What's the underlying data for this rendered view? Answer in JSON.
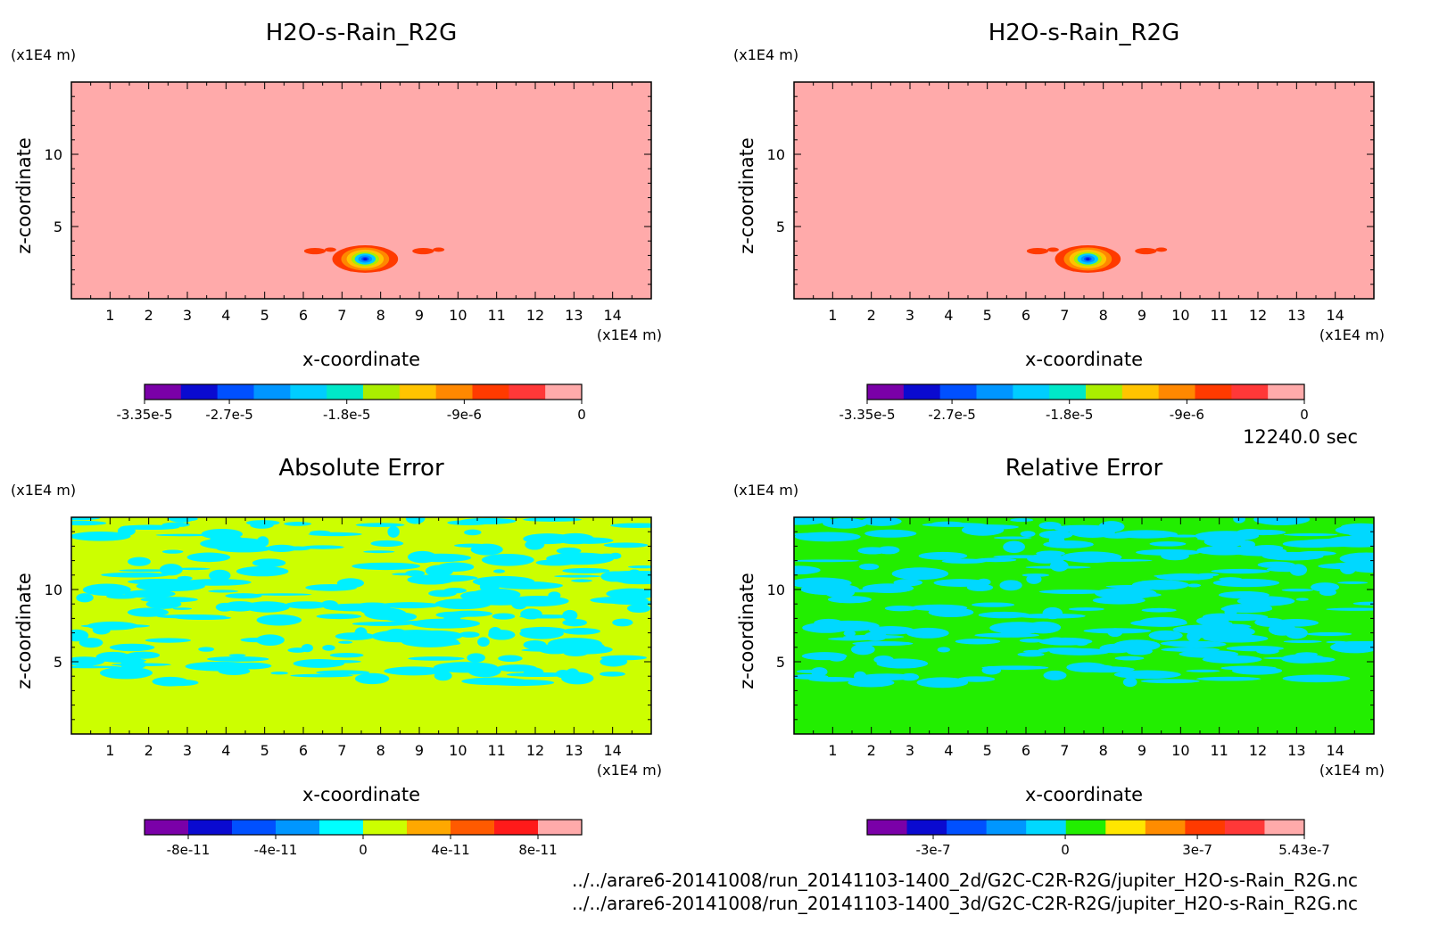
{
  "time_label": "12240.0 sec",
  "files": [
    "../../arare6-20141008/run_20141103-1400_2d/G2C-C2R-R2G/jupiter_H2O-s-Rain_R2G.nc",
    "../../arare6-20141008/run_20141103-1400_3d/G2C-C2R-R2G/jupiter_H2O-s-Rain_R2G.nc"
  ],
  "chart_data": [
    {
      "type": "heatmap",
      "title": "H2O-s-Rain_R2G",
      "xlabel": "x-coordinate",
      "ylabel": "z-coordinate",
      "x_unit": "(x1E4 m)",
      "y_unit": "(x1E4 m)",
      "xlim": [
        0,
        15
      ],
      "ylim": [
        0,
        15
      ],
      "x_ticks": [
        "1",
        "2",
        "3",
        "4",
        "5",
        "6",
        "7",
        "8",
        "9",
        "10",
        "11",
        "12",
        "13",
        "14"
      ],
      "y_ticks": [
        "5",
        "10"
      ],
      "field": "plume",
      "background_color": "#ffaaaa",
      "colorbar": {
        "colors": [
          "#7a00a8",
          "#0a0ad0",
          "#0050ff",
          "#0096ff",
          "#00cdff",
          "#00e8c8",
          "#aaee00",
          "#ffc400",
          "#ff8800",
          "#ff3a00",
          "#ff3838",
          "#ffaaaa"
        ],
        "tick_labels": [
          "-3.35e-5",
          "-2.7e-5",
          "-1.8e-5",
          "-9e-6",
          "0"
        ],
        "min": -3.35e-05,
        "max": 0
      }
    },
    {
      "type": "heatmap",
      "title": "H2O-s-Rain_R2G",
      "xlabel": "x-coordinate",
      "ylabel": "z-coordinate",
      "x_unit": "(x1E4 m)",
      "y_unit": "(x1E4 m)",
      "xlim": [
        0,
        15
      ],
      "ylim": [
        0,
        15
      ],
      "x_ticks": [
        "1",
        "2",
        "3",
        "4",
        "5",
        "6",
        "7",
        "8",
        "9",
        "10",
        "11",
        "12",
        "13",
        "14"
      ],
      "y_ticks": [
        "5",
        "10"
      ],
      "field": "plume",
      "background_color": "#ffaaaa",
      "colorbar": {
        "colors": [
          "#7a00a8",
          "#0a0ad0",
          "#0050ff",
          "#0096ff",
          "#00cdff",
          "#00e8c8",
          "#aaee00",
          "#ffc400",
          "#ff8800",
          "#ff3a00",
          "#ff3838",
          "#ffaaaa"
        ],
        "tick_labels": [
          "-3.35e-5",
          "-2.7e-5",
          "-1.8e-5",
          "-9e-6",
          "0"
        ],
        "min": -3.35e-05,
        "max": 0
      }
    },
    {
      "type": "heatmap",
      "title": "Absolute Error",
      "xlabel": "x-coordinate",
      "ylabel": "z-coordinate",
      "x_unit": "(x1E4 m)",
      "y_unit": "(x1E4 m)",
      "xlim": [
        0,
        15
      ],
      "ylim": [
        0,
        15
      ],
      "x_ticks": [
        "1",
        "2",
        "3",
        "4",
        "5",
        "6",
        "7",
        "8",
        "9",
        "10",
        "11",
        "12",
        "13",
        "14"
      ],
      "y_ticks": [
        "5",
        "10"
      ],
      "field": "noise",
      "background_color": "#ccff00",
      "noise_color": "#00f0ff",
      "noise_zmin": 3.5,
      "colorbar": {
        "colors": [
          "#7a00a8",
          "#0a0ad0",
          "#0050ff",
          "#0096ff",
          "#00ffff",
          "#ccff00",
          "#ffa800",
          "#ff5a00",
          "#ff1a1a",
          "#ffaaaa"
        ],
        "tick_labels": [
          "-8e-11",
          "-4e-11",
          "0",
          "4e-11",
          "8e-11"
        ],
        "min": -1e-10,
        "max": 1e-10
      }
    },
    {
      "type": "heatmap",
      "title": "Relative Error",
      "xlabel": "x-coordinate",
      "ylabel": "z-coordinate",
      "x_unit": "(x1E4 m)",
      "y_unit": "(x1E4 m)",
      "xlim": [
        0,
        15
      ],
      "ylim": [
        0,
        15
      ],
      "x_ticks": [
        "1",
        "2",
        "3",
        "4",
        "5",
        "6",
        "7",
        "8",
        "9",
        "10",
        "11",
        "12",
        "13",
        "14"
      ],
      "y_ticks": [
        "5",
        "10"
      ],
      "field": "noise",
      "background_color": "#22ee00",
      "noise_color": "#00d8ff",
      "noise_zmin": 3.5,
      "colorbar": {
        "colors": [
          "#7a00a8",
          "#0a0ad0",
          "#0050ff",
          "#0096ff",
          "#00d8ff",
          "#22ee00",
          "#ffe600",
          "#ff8c00",
          "#ff3a00",
          "#ff3838",
          "#ffaaaa"
        ],
        "tick_labels": [
          "-3e-7",
          "0",
          "3e-7",
          "5.43e-7"
        ],
        "min": -4.5e-07,
        "max": 5.43e-07
      }
    }
  ]
}
